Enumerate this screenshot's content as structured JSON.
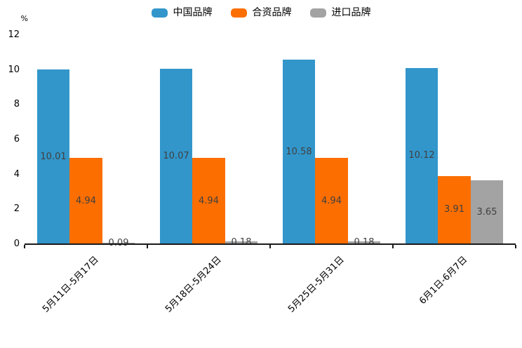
{
  "chart_data": {
    "type": "bar",
    "title": "",
    "ylabel": "%",
    "xlabel": "",
    "categories": [
      "5月11日-5月17日",
      "5月18日-5月24日",
      "5月25日-5月31日",
      "6月1日-6月7日"
    ],
    "series": [
      {
        "name": "中国品牌",
        "color": "#3296CB",
        "values": [
          10.01,
          10.07,
          10.58,
          10.12
        ]
      },
      {
        "name": "合资品牌",
        "color": "#FC6E00",
        "values": [
          4.94,
          4.94,
          4.94,
          3.91
        ]
      },
      {
        "name": "进口品牌",
        "color": "#A3A3A3",
        "values": [
          0.09,
          0.18,
          0.18,
          3.65
        ]
      }
    ],
    "y_ticks": [
      0,
      2,
      4,
      6,
      8,
      10,
      12
    ],
    "ylim": [
      0,
      12
    ],
    "grid": false,
    "legend_position": "top-center",
    "bar_label_color": "#404040",
    "axis_color": "#1a1a1a"
  }
}
